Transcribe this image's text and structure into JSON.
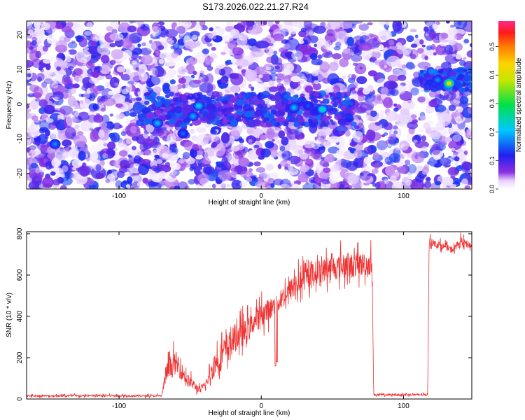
{
  "title": "S173.2026.022.21.27.R24",
  "chart_data": [
    {
      "type": "heatmap",
      "xlabel": "Height of straight line (km)",
      "ylabel": "Frequency (Hz)",
      "xlim": [
        -165,
        148
      ],
      "ylim": [
        -24.5,
        24
      ],
      "x_ticks": [
        {
          "value": -100,
          "label": "-100"
        },
        {
          "value": 0,
          "label": "0"
        },
        {
          "value": 100,
          "label": "100"
        }
      ],
      "y_ticks": [
        {
          "value": -20,
          "label": "-20"
        },
        {
          "value": -10,
          "label": "-10"
        },
        {
          "value": 0,
          "label": "0"
        },
        {
          "value": 10,
          "label": "10"
        },
        {
          "value": 20,
          "label": "20"
        }
      ],
      "colorbar": {
        "label": "Normalized spectral amplitude",
        "range": [
          0.0,
          0.59
        ],
        "ticks": [
          {
            "value": 0.0,
            "label": "0.0"
          },
          {
            "value": 0.1,
            "label": "0.1"
          },
          {
            "value": 0.2,
            "label": "0.2"
          },
          {
            "value": 0.3,
            "label": "0.3"
          },
          {
            "value": 0.4,
            "label": "0.4"
          },
          {
            "value": 0.5,
            "label": "0.5"
          }
        ]
      },
      "hotspots": [
        {
          "x": -145,
          "y": -11.5,
          "amp": 0.17
        },
        {
          "x": -73,
          "y": -5.5,
          "amp": 0.2
        },
        {
          "x": -55,
          "y": -8.5,
          "amp": 0.15
        },
        {
          "x": -48,
          "y": -3.5,
          "amp": 0.19
        },
        {
          "x": -44,
          "y": -0.5,
          "amp": 0.22
        },
        {
          "x": 23,
          "y": -1.0,
          "amp": 0.2
        },
        {
          "x": 33,
          "y": -0.5,
          "amp": 0.14
        },
        {
          "x": 38,
          "y": -2.0,
          "amp": 0.12
        },
        {
          "x": 43,
          "y": -1.5,
          "amp": 0.26
        },
        {
          "x": 124,
          "y": 7.0,
          "amp": 0.17
        },
        {
          "x": 132,
          "y": 6.0,
          "amp": 0.45
        }
      ]
    },
    {
      "type": "line",
      "xlabel": "Height of straight line (km)",
      "ylabel": "SNR (10 * v/v)",
      "xlim": [
        -165,
        148
      ],
      "ylim": [
        0,
        810
      ],
      "x_ticks": [
        {
          "value": -100,
          "label": "-100"
        },
        {
          "value": 0,
          "label": "0"
        },
        {
          "value": 100,
          "label": "100"
        }
      ],
      "y_ticks": [
        {
          "value": 0,
          "label": "0"
        },
        {
          "value": 200,
          "label": "200"
        },
        {
          "value": 400,
          "label": "400"
        },
        {
          "value": 600,
          "label": "600"
        },
        {
          "value": 800,
          "label": "800"
        }
      ],
      "series": [
        {
          "name": "SNR",
          "color": "#ee3333",
          "envelope": [
            {
              "x": -165,
              "base": 15,
              "spread": 10
            },
            {
              "x": -70,
              "base": 15,
              "spread": 10
            },
            {
              "x": -67,
              "base": 120,
              "spread": 90
            },
            {
              "x": -60,
              "base": 170,
              "spread": 110
            },
            {
              "x": -52,
              "base": 90,
              "spread": 60
            },
            {
              "x": -43,
              "base": 40,
              "spread": 30
            },
            {
              "x": -38,
              "base": 80,
              "spread": 40
            },
            {
              "x": -33,
              "base": 160,
              "spread": 120
            },
            {
              "x": -25,
              "base": 230,
              "spread": 150
            },
            {
              "x": -18,
              "base": 290,
              "spread": 130
            },
            {
              "x": -10,
              "base": 320,
              "spread": 120
            },
            {
              "x": -5,
              "base": 370,
              "spread": 100
            },
            {
              "x": 0,
              "base": 400,
              "spread": 110
            },
            {
              "x": 10,
              "base": 450,
              "spread": 100
            },
            {
              "x": 20,
              "base": 520,
              "spread": 110
            },
            {
              "x": 35,
              "base": 600,
              "spread": 110
            },
            {
              "x": 50,
              "base": 630,
              "spread": 120
            },
            {
              "x": 65,
              "base": 640,
              "spread": 120
            },
            {
              "x": 78,
              "base": 650,
              "spread": 110
            },
            {
              "x": 79,
              "base": 20,
              "spread": 10
            },
            {
              "x": 117,
              "base": 20,
              "spread": 10
            },
            {
              "x": 118,
              "base": 760,
              "spread": 35
            },
            {
              "x": 135,
              "base": 720,
              "spread": 30
            },
            {
              "x": 140,
              "base": 760,
              "spread": 40
            },
            {
              "x": 148,
              "base": 740,
              "spread": 30
            }
          ],
          "dips": [
            {
              "x": 10,
              "value": 160
            },
            {
              "x": 11,
              "value": 180
            }
          ]
        }
      ]
    }
  ]
}
